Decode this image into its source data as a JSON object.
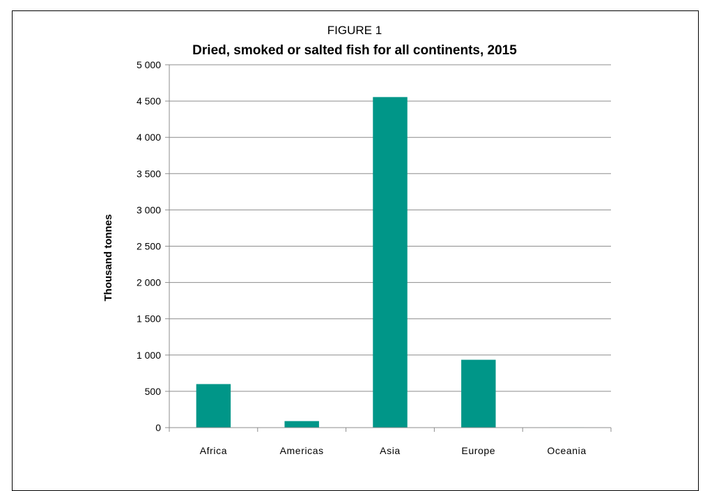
{
  "chart_data": {
    "type": "bar",
    "title": "FIGURE 1",
    "subtitle": "Dried, smoked or salted fish for all continents, 2015",
    "xlabel": "",
    "ylabel": "Thousand  tonnes",
    "categories": [
      "Africa",
      "Americas",
      "Asia",
      "Europe",
      "Oceania"
    ],
    "values": [
      600,
      90,
      4555,
      935,
      5
    ],
    "ylim": [
      0,
      5000
    ],
    "yticks": [
      0,
      500,
      1000,
      1500,
      2000,
      2500,
      3000,
      3500,
      4000,
      4500,
      5000
    ],
    "ytick_labels": [
      "0",
      "500",
      "1 000",
      "1 500",
      "2 000",
      "2 500",
      "3 000",
      "3 500",
      "4 000",
      "4 500",
      "5 000"
    ],
    "grid": true,
    "legend": "none",
    "bar_color": "#009688"
  }
}
